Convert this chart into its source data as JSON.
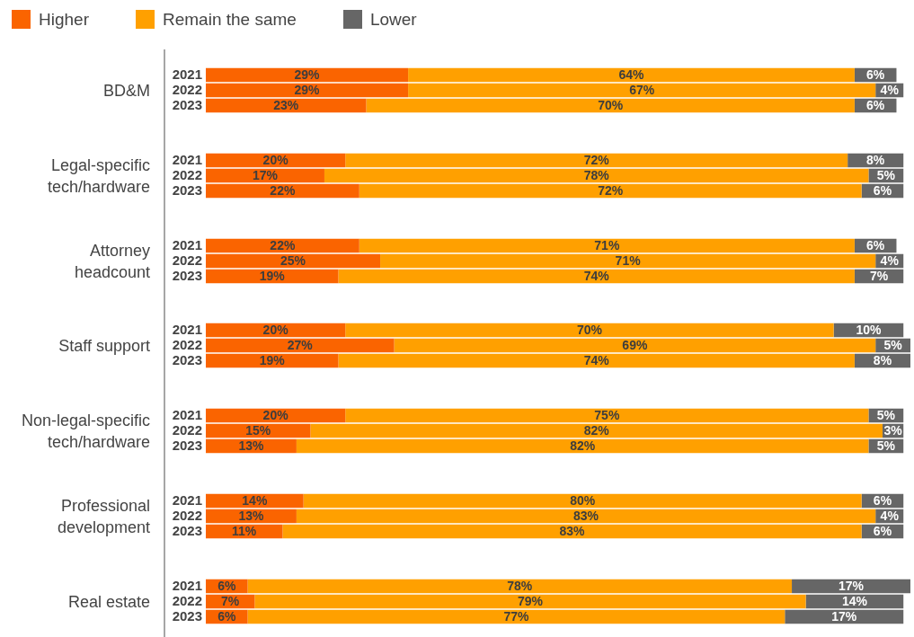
{
  "chart_data": [
    {
      "type": "bar",
      "orientation": "horizontal",
      "stacked": true,
      "legend": "top left",
      "tick_labels": "y",
      "ylabel": "BD&M",
      "categories": [
        "2021",
        "2022",
        "2023"
      ],
      "series": [
        {
          "name": "Higher",
          "color": "#fa6400",
          "values": [
            29,
            29,
            23
          ],
          "value_labels": [
            "29%",
            "29%",
            "23%"
          ]
        },
        {
          "name": "Remain the same",
          "color": "#ffa000",
          "values": [
            64,
            67,
            70
          ],
          "value_labels": [
            "64%",
            "67%",
            "70%"
          ]
        },
        {
          "name": "Lower",
          "color": "#666666",
          "values": [
            6,
            4,
            6
          ],
          "value_labels": [
            "6%",
            "4%",
            "6%"
          ]
        }
      ]
    },
    {
      "type": "bar",
      "orientation": "horizontal",
      "stacked": true,
      "tick_labels": "y",
      "ylabel": "Legal-specific\ntech/hardware",
      "categories": [
        "2021",
        "2022",
        "2023"
      ],
      "series": [
        {
          "color": "#fa6400",
          "values": [
            20,
            17,
            22
          ],
          "value_labels": [
            "20%",
            "17%",
            "22%"
          ]
        },
        {
          "color": "#ffa000",
          "values": [
            72,
            78,
            72
          ],
          "value_labels": [
            "72%",
            "78%",
            "72%"
          ]
        },
        {
          "color": "#666666",
          "values": [
            8,
            5,
            6
          ],
          "value_labels": [
            "8%",
            "5%",
            "6%"
          ]
        }
      ]
    },
    {
      "type": "bar",
      "orientation": "horizontal",
      "stacked": true,
      "tick_labels": "y",
      "ylabel": "Attorney\nheadcount",
      "categories": [
        "2021",
        "2022",
        "2023"
      ],
      "series": [
        {
          "color": "#fa6400",
          "values": [
            22,
            25,
            19
          ],
          "value_labels": [
            "22%",
            "25%",
            "19%"
          ]
        },
        {
          "color": "#ffa000",
          "values": [
            71,
            71,
            74
          ],
          "value_labels": [
            "71%",
            "71%",
            "74%"
          ]
        },
        {
          "color": "#666666",
          "values": [
            6,
            4,
            7
          ],
          "value_labels": [
            "6%",
            "4%",
            "7%"
          ]
        }
      ]
    },
    {
      "type": "bar",
      "orientation": "horizontal",
      "stacked": true,
      "tick_labels": "y",
      "ylabel": "Staff support",
      "categories": [
        "2021",
        "2022",
        "2023"
      ],
      "series": [
        {
          "color": "#fa6400",
          "values": [
            20,
            27,
            19
          ],
          "value_labels": [
            "20%",
            "27%",
            "19%"
          ]
        },
        {
          "color": "#ffa000",
          "values": [
            70,
            69,
            74
          ],
          "value_labels": [
            "70%",
            "69%",
            "74%"
          ]
        },
        {
          "color": "#666666",
          "values": [
            10,
            5,
            8
          ],
          "value_labels": [
            "10%",
            "5%",
            "8%"
          ]
        }
      ]
    },
    {
      "type": "bar",
      "orientation": "horizontal",
      "stacked": true,
      "tick_labels": "y",
      "ylabel": "Non-legal-specific\ntech/hardware",
      "categories": [
        "2021",
        "2022",
        "2023"
      ],
      "series": [
        {
          "color": "#fa6400",
          "values": [
            20,
            15,
            13
          ],
          "value_labels": [
            "20%",
            "15%",
            "13%"
          ]
        },
        {
          "color": "#ffa000",
          "values": [
            75,
            82,
            82
          ],
          "value_labels": [
            "75%",
            "82%",
            "82%"
          ]
        },
        {
          "color": "#666666",
          "values": [
            5,
            3,
            5
          ],
          "value_labels": [
            "5%",
            "3%",
            "5%"
          ]
        }
      ]
    },
    {
      "type": "bar",
      "orientation": "horizontal",
      "stacked": true,
      "tick_labels": "y",
      "ylabel": "Professional\ndevelopment",
      "categories": [
        "2021",
        "2022",
        "2023"
      ],
      "series": [
        {
          "color": "#fa6400",
          "values": [
            14,
            13,
            11
          ],
          "value_labels": [
            "14%",
            "13%",
            "11%"
          ]
        },
        {
          "color": "#ffa000",
          "values": [
            80,
            83,
            83
          ],
          "value_labels": [
            "80%",
            "83%",
            "83%"
          ]
        },
        {
          "color": "#666666",
          "values": [
            6,
            4,
            6
          ],
          "value_labels": [
            "6%",
            "4%",
            "6%"
          ]
        }
      ]
    },
    {
      "type": "bar",
      "orientation": "horizontal",
      "stacked": true,
      "tick_labels": "y",
      "ylabel": "Real estate",
      "categories": [
        "2021",
        "2022",
        "2023"
      ],
      "series": [
        {
          "color": "#fa6400",
          "values": [
            6,
            7,
            6
          ],
          "value_labels": [
            "6%",
            "7%",
            "6%"
          ]
        },
        {
          "color": "#ffa000",
          "values": [
            78,
            79,
            77
          ],
          "value_labels": [
            "78%",
            "79%",
            "77%"
          ]
        },
        {
          "color": "#666666",
          "values": [
            17,
            14,
            17
          ],
          "value_labels": [
            "17%",
            "14%",
            "17%"
          ]
        }
      ]
    }
  ]
}
